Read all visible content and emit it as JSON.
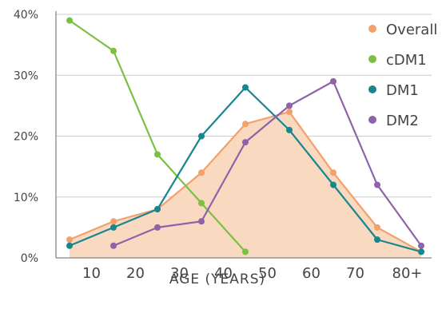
{
  "chart_data": {
    "type": "line",
    "title": "",
    "xlabel": "AGE (YEARS)",
    "ylabel": "",
    "x_tick_labels": [
      "10",
      "20",
      "30",
      "40",
      "50",
      "60",
      "70",
      "80+"
    ],
    "x_unit_note": "ages in years; last category 80+",
    "y_tick_labels": [
      "0%",
      "10%",
      "20%",
      "30%",
      "40%"
    ],
    "ylim": [
      0,
      40
    ],
    "grid": "horizontal",
    "legend_position": "top-right",
    "series": [
      {
        "name": "Overall",
        "color": "#F4A06B",
        "fill": "#F9D9C0",
        "area": true,
        "x": [
          5,
          15,
          25,
          35,
          45,
          55,
          65,
          75,
          85
        ],
        "values": [
          3,
          6,
          8,
          14,
          22,
          24,
          14,
          5,
          1
        ]
      },
      {
        "name": "cDM1",
        "color": "#7BC043",
        "area": false,
        "x": [
          5,
          15,
          25,
          35,
          45
        ],
        "values": [
          39,
          34,
          17,
          9,
          1
        ]
      },
      {
        "name": "DM1",
        "color": "#17868F",
        "area": false,
        "x": [
          5,
          15,
          25,
          35,
          45,
          55,
          65,
          75,
          85
        ],
        "values": [
          2,
          5,
          8,
          20,
          28,
          21,
          12,
          3,
          1
        ]
      },
      {
        "name": "DM2",
        "color": "#8E63A9",
        "area": false,
        "x": [
          15,
          25,
          35,
          45,
          55,
          65,
          75,
          85
        ],
        "values": [
          2,
          5,
          6,
          19,
          25,
          29,
          12,
          2
        ]
      }
    ],
    "gridline_color": "#CCCCCC",
    "axis_color": "#666666"
  }
}
